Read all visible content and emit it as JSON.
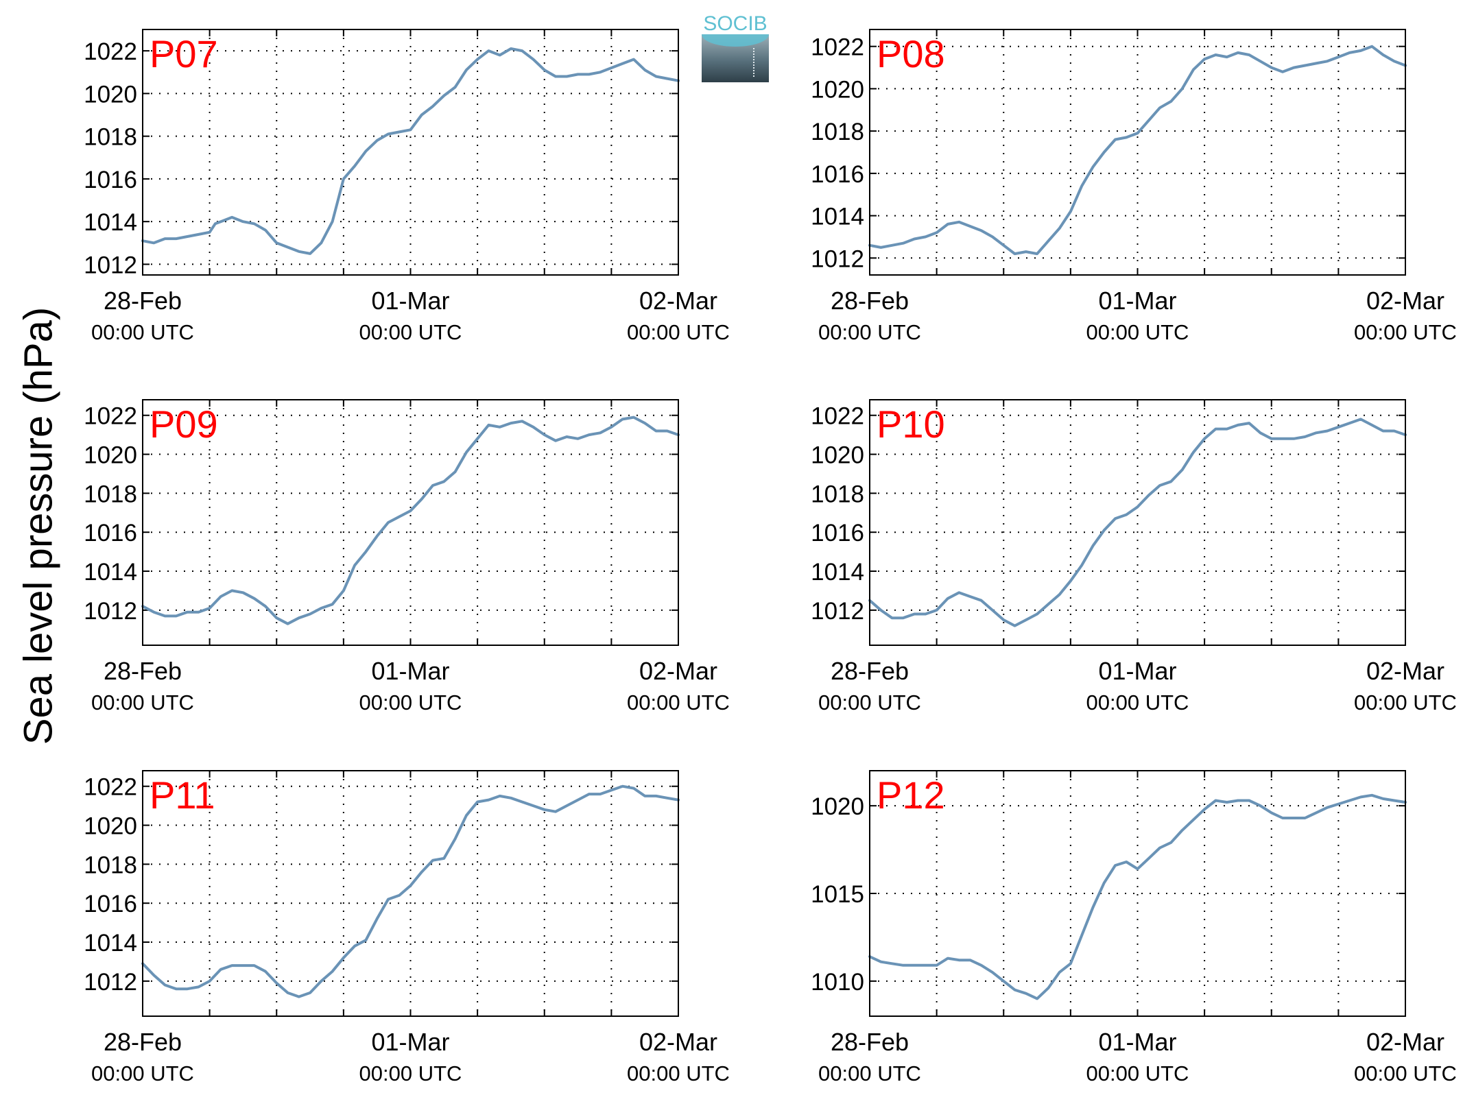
{
  "figure": {
    "ylabel": "Sea level pressure (hPa)",
    "logo_text": "SOCIB",
    "colors": {
      "line": "#6a93b6",
      "panel_label": "#ff0000",
      "axis": "#000000",
      "grid": "#000000"
    }
  },
  "chart_data": [
    {
      "type": "line",
      "title": "P07",
      "xlabel": "",
      "ylabel": "",
      "ylim": [
        1011.5,
        1023
      ],
      "yticks": [
        1012,
        1014,
        1016,
        1018,
        1020,
        1022
      ],
      "ytick_labels": [
        "1012",
        "1014",
        "1016",
        "1018",
        "1020",
        "1022"
      ],
      "xlim": [
        0,
        48
      ],
      "xtick_labels": [
        {
          "x": 0,
          "date": "28-Feb",
          "time": "00:00 UTC"
        },
        {
          "x": 24,
          "date": "01-Mar",
          "time": "00:00 UTC"
        },
        {
          "x": 48,
          "date": "02-Mar",
          "time": "00:00 UTC"
        }
      ],
      "grid": true,
      "series": [
        {
          "x": [
            0,
            1,
            2,
            3,
            4,
            5,
            6,
            6.5,
            7,
            8,
            9,
            10,
            11,
            12,
            13,
            14,
            15,
            16,
            17,
            18,
            19,
            20,
            21,
            22,
            23,
            24,
            25,
            26,
            27,
            28,
            29,
            30,
            31,
            32,
            33,
            34,
            35,
            36,
            37,
            38,
            39,
            40,
            41,
            42,
            43,
            44,
            45,
            46,
            47,
            48
          ],
          "y": [
            1013.1,
            1013.0,
            1013.2,
            1013.2,
            1013.3,
            1013.4,
            1013.5,
            1013.9,
            1014.0,
            1014.2,
            1014.0,
            1013.9,
            1013.6,
            1013.0,
            1012.8,
            1012.6,
            1012.5,
            1013.0,
            1014.0,
            1016.0,
            1016.6,
            1017.3,
            1017.8,
            1018.1,
            1018.2,
            1018.3,
            1019.0,
            1019.4,
            1019.9,
            1020.3,
            1021.1,
            1021.6,
            1022.0,
            1021.8,
            1022.1,
            1022.0,
            1021.6,
            1021.1,
            1020.8,
            1020.8,
            1020.9,
            1020.9,
            1021.0,
            1021.2,
            1021.4,
            1021.6,
            1021.1,
            1020.8,
            1020.7,
            1020.6
          ]
        }
      ]
    },
    {
      "type": "line",
      "title": "P08",
      "xlabel": "",
      "ylabel": "",
      "ylim": [
        1011.2,
        1022.8
      ],
      "yticks": [
        1012,
        1014,
        1016,
        1018,
        1020,
        1022
      ],
      "ytick_labels": [
        "1012",
        "1014",
        "1016",
        "1018",
        "1020",
        "1022"
      ],
      "xlim": [
        0,
        48
      ],
      "xtick_labels": [
        {
          "x": 0,
          "date": "28-Feb",
          "time": "00:00 UTC"
        },
        {
          "x": 24,
          "date": "01-Mar",
          "time": "00:00 UTC"
        },
        {
          "x": 48,
          "date": "02-Mar",
          "time": "00:00 UTC"
        }
      ],
      "grid": true,
      "series": [
        {
          "x": [
            0,
            1,
            2,
            3,
            4,
            5,
            6,
            7,
            8,
            9,
            10,
            11,
            12,
            13,
            14,
            15,
            16,
            17,
            18,
            19,
            20,
            21,
            22,
            23,
            24,
            25,
            26,
            27,
            28,
            29,
            30,
            31,
            32,
            33,
            34,
            35,
            36,
            37,
            38,
            39,
            40,
            41,
            42,
            43,
            44,
            45,
            46,
            47,
            48
          ],
          "y": [
            1012.6,
            1012.5,
            1012.6,
            1012.7,
            1012.9,
            1013.0,
            1013.2,
            1013.6,
            1013.7,
            1013.5,
            1013.3,
            1013.0,
            1012.6,
            1012.2,
            1012.3,
            1012.2,
            1012.8,
            1013.4,
            1014.2,
            1015.4,
            1016.3,
            1017.0,
            1017.6,
            1017.7,
            1017.9,
            1018.5,
            1019.1,
            1019.4,
            1020.0,
            1020.9,
            1021.4,
            1021.6,
            1021.5,
            1021.7,
            1021.6,
            1021.3,
            1021.0,
            1020.8,
            1021.0,
            1021.1,
            1021.2,
            1021.3,
            1021.5,
            1021.7,
            1021.8,
            1022.0,
            1021.6,
            1021.3,
            1021.1
          ]
        }
      ]
    },
    {
      "type": "line",
      "title": "P09",
      "xlabel": "",
      "ylabel": "",
      "ylim": [
        1010.2,
        1022.8
      ],
      "yticks": [
        1012,
        1014,
        1016,
        1018,
        1020,
        1022
      ],
      "ytick_labels": [
        "1012",
        "1014",
        "1016",
        "1018",
        "1020",
        "1022"
      ],
      "xlim": [
        0,
        48
      ],
      "xtick_labels": [
        {
          "x": 0,
          "date": "28-Feb",
          "time": "00:00 UTC"
        },
        {
          "x": 24,
          "date": "01-Mar",
          "time": "00:00 UTC"
        },
        {
          "x": 48,
          "date": "02-Mar",
          "time": "00:00 UTC"
        }
      ],
      "grid": true,
      "series": [
        {
          "x": [
            0,
            1,
            2,
            3,
            4,
            5,
            6,
            7,
            8,
            9,
            10,
            11,
            12,
            13,
            14,
            15,
            16,
            17,
            18,
            19,
            20,
            21,
            22,
            23,
            24,
            25,
            26,
            27,
            28,
            29,
            30,
            31,
            32,
            33,
            34,
            35,
            36,
            37,
            38,
            39,
            40,
            41,
            42,
            43,
            44,
            45,
            46,
            47,
            48
          ],
          "y": [
            1012.2,
            1011.9,
            1011.7,
            1011.7,
            1011.9,
            1011.9,
            1012.1,
            1012.7,
            1013.0,
            1012.9,
            1012.6,
            1012.2,
            1011.6,
            1011.3,
            1011.6,
            1011.8,
            1012.1,
            1012.3,
            1013.0,
            1014.3,
            1015.0,
            1015.8,
            1016.5,
            1016.8,
            1017.1,
            1017.7,
            1018.4,
            1018.6,
            1019.1,
            1020.1,
            1020.8,
            1021.5,
            1021.4,
            1021.6,
            1021.7,
            1021.4,
            1021.0,
            1020.7,
            1020.9,
            1020.8,
            1021.0,
            1021.1,
            1021.4,
            1021.8,
            1021.9,
            1021.6,
            1021.2,
            1021.2,
            1021.0
          ]
        }
      ]
    },
    {
      "type": "line",
      "title": "P10",
      "xlabel": "",
      "ylabel": "",
      "ylim": [
        1010.2,
        1022.8
      ],
      "yticks": [
        1012,
        1014,
        1016,
        1018,
        1020,
        1022
      ],
      "ytick_labels": [
        "1012",
        "1014",
        "1016",
        "1018",
        "1020",
        "1022"
      ],
      "xlim": [
        0,
        48
      ],
      "xtick_labels": [
        {
          "x": 0,
          "date": "28-Feb",
          "time": "00:00 UTC"
        },
        {
          "x": 24,
          "date": "01-Mar",
          "time": "00:00 UTC"
        },
        {
          "x": 48,
          "date": "02-Mar",
          "time": "00:00 UTC"
        }
      ],
      "grid": true,
      "series": [
        {
          "x": [
            0,
            1,
            2,
            3,
            4,
            5,
            6,
            7,
            8,
            9,
            10,
            11,
            12,
            13,
            14,
            15,
            16,
            17,
            18,
            19,
            20,
            21,
            22,
            23,
            24,
            25,
            26,
            27,
            28,
            29,
            30,
            31,
            32,
            33,
            34,
            35,
            36,
            37,
            38,
            39,
            40,
            41,
            42,
            43,
            44,
            45,
            46,
            47,
            48
          ],
          "y": [
            1012.5,
            1012.0,
            1011.6,
            1011.6,
            1011.8,
            1011.8,
            1012.0,
            1012.6,
            1012.9,
            1012.7,
            1012.5,
            1012.0,
            1011.5,
            1011.2,
            1011.5,
            1011.8,
            1012.3,
            1012.8,
            1013.5,
            1014.3,
            1015.3,
            1016.1,
            1016.7,
            1016.9,
            1017.3,
            1017.9,
            1018.4,
            1018.6,
            1019.2,
            1020.1,
            1020.8,
            1021.3,
            1021.3,
            1021.5,
            1021.6,
            1021.1,
            1020.8,
            1020.8,
            1020.8,
            1020.9,
            1021.1,
            1021.2,
            1021.4,
            1021.6,
            1021.8,
            1021.5,
            1021.2,
            1021.2,
            1021.0
          ]
        }
      ]
    },
    {
      "type": "line",
      "title": "P11",
      "xlabel": "",
      "ylabel": "",
      "ylim": [
        1010.2,
        1022.8
      ],
      "yticks": [
        1012,
        1014,
        1016,
        1018,
        1020,
        1022
      ],
      "ytick_labels": [
        "1012",
        "1014",
        "1016",
        "1018",
        "1020",
        "1022"
      ],
      "xlim": [
        0,
        48
      ],
      "xtick_labels": [
        {
          "x": 0,
          "date": "28-Feb",
          "time": "00:00 UTC"
        },
        {
          "x": 24,
          "date": "01-Mar",
          "time": "00:00 UTC"
        },
        {
          "x": 48,
          "date": "02-Mar",
          "time": "00:00 UTC"
        }
      ],
      "grid": true,
      "series": [
        {
          "x": [
            0,
            1,
            2,
            3,
            4,
            5,
            6,
            7,
            8,
            9,
            10,
            11,
            12,
            13,
            14,
            15,
            16,
            17,
            18,
            19,
            20,
            21,
            22,
            23,
            24,
            25,
            26,
            27,
            28,
            29,
            30,
            31,
            32,
            33,
            34,
            35,
            36,
            37,
            38,
            39,
            40,
            41,
            42,
            43,
            44,
            45,
            46,
            47,
            48
          ],
          "y": [
            1012.9,
            1012.3,
            1011.8,
            1011.6,
            1011.6,
            1011.7,
            1012.0,
            1012.6,
            1012.8,
            1012.8,
            1012.8,
            1012.5,
            1011.9,
            1011.4,
            1011.2,
            1011.4,
            1012.0,
            1012.5,
            1013.2,
            1013.8,
            1014.1,
            1015.2,
            1016.2,
            1016.4,
            1016.9,
            1017.6,
            1018.2,
            1018.3,
            1019.3,
            1020.5,
            1021.2,
            1021.3,
            1021.5,
            1021.4,
            1021.2,
            1021.0,
            1020.8,
            1020.7,
            1021.0,
            1021.3,
            1021.6,
            1021.6,
            1021.8,
            1022.0,
            1021.9,
            1021.5,
            1021.5,
            1021.4,
            1021.3
          ]
        }
      ]
    },
    {
      "type": "line",
      "title": "P12",
      "xlabel": "",
      "ylabel": "",
      "ylim": [
        1008,
        1022
      ],
      "yticks": [
        1010,
        1015,
        1020
      ],
      "ytick_labels": [
        "1010",
        "1015",
        "1020"
      ],
      "xlim": [
        0,
        48
      ],
      "xtick_labels": [
        {
          "x": 0,
          "date": "28-Feb",
          "time": "00:00 UTC"
        },
        {
          "x": 24,
          "date": "01-Mar",
          "time": "00:00 UTC"
        },
        {
          "x": 48,
          "date": "02-Mar",
          "time": "00:00 UTC"
        }
      ],
      "grid": true,
      "series": [
        {
          "x": [
            0,
            1,
            2,
            3,
            4,
            5,
            6,
            7,
            8,
            9,
            10,
            11,
            12,
            13,
            14,
            15,
            16,
            17,
            18,
            19,
            20,
            21,
            22,
            23,
            24,
            25,
            26,
            27,
            28,
            29,
            30,
            31,
            32,
            33,
            34,
            35,
            36,
            37,
            38,
            39,
            40,
            41,
            42,
            43,
            44,
            45,
            46,
            47,
            48
          ],
          "y": [
            1011.4,
            1011.1,
            1011.0,
            1010.9,
            1010.9,
            1010.9,
            1010.9,
            1011.3,
            1011.2,
            1011.2,
            1010.9,
            1010.5,
            1010.0,
            1009.5,
            1009.3,
            1009.0,
            1009.6,
            1010.5,
            1011.0,
            1012.6,
            1014.2,
            1015.6,
            1016.6,
            1016.8,
            1016.4,
            1017.0,
            1017.6,
            1017.9,
            1018.6,
            1019.2,
            1019.8,
            1020.3,
            1020.2,
            1020.3,
            1020.3,
            1020.0,
            1019.6,
            1019.3,
            1019.3,
            1019.3,
            1019.6,
            1019.9,
            1020.1,
            1020.3,
            1020.5,
            1020.6,
            1020.4,
            1020.3,
            1020.2
          ]
        }
      ]
    }
  ]
}
